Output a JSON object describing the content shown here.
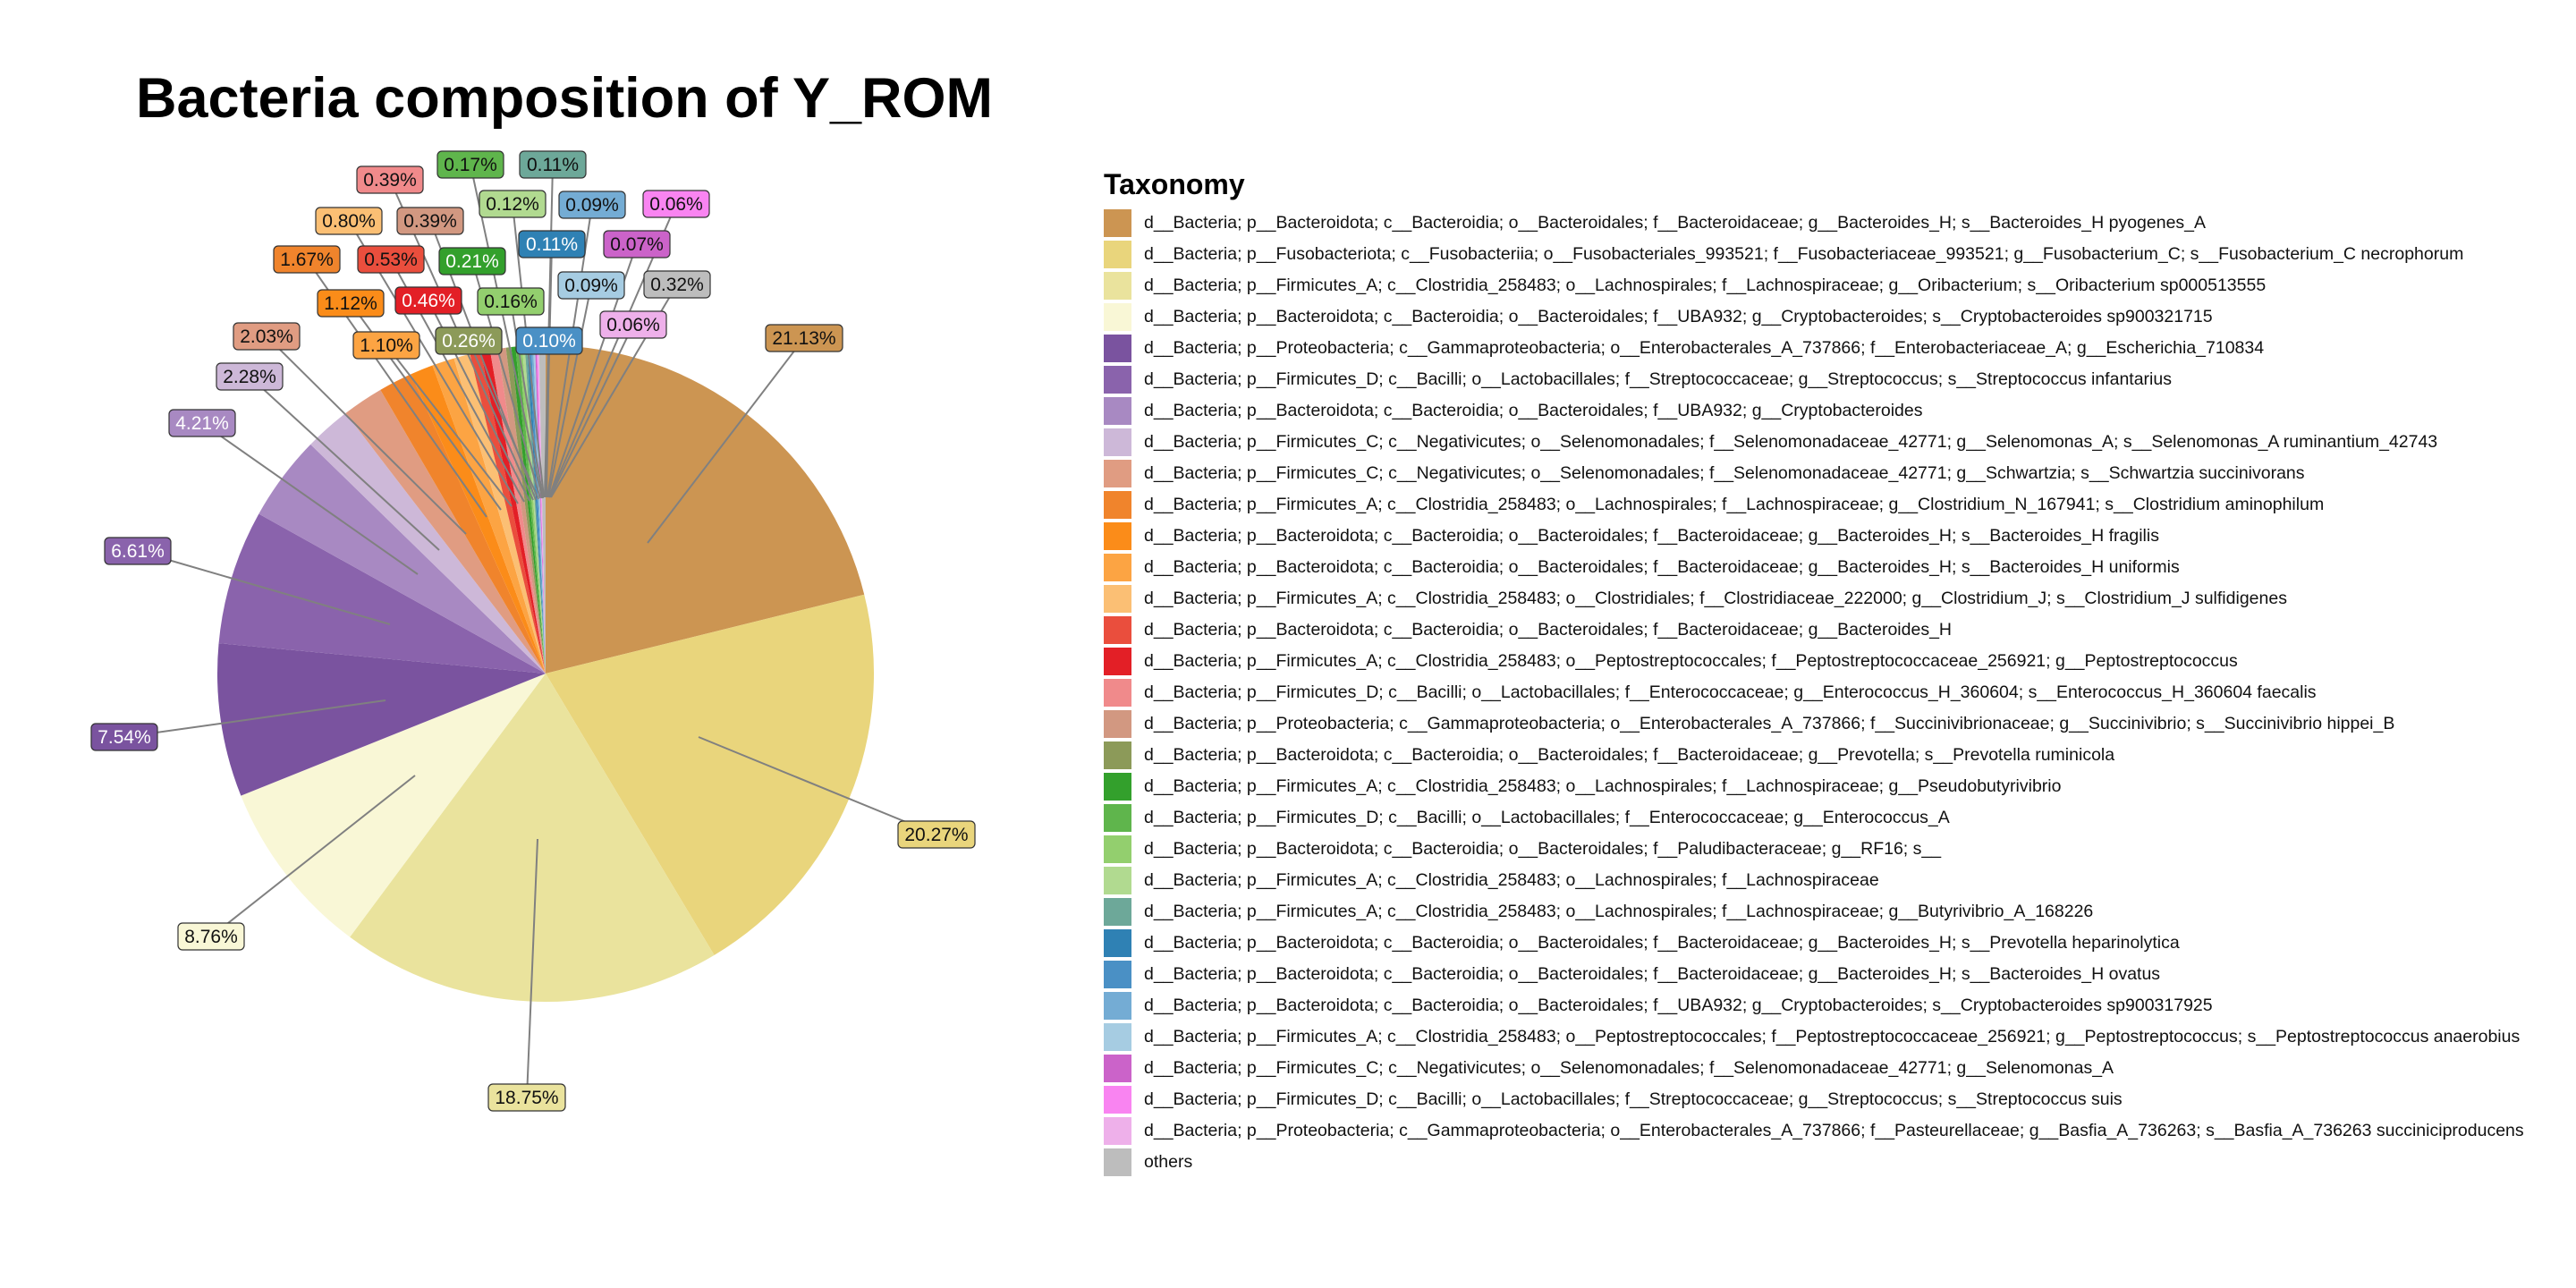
{
  "chart_data": {
    "type": "pie",
    "title": "Bacteria composition of Y_ROM",
    "legend_title": "Taxonomy",
    "legend_position": "right",
    "slices": [
      {
        "name": "d__Bacteria; p__Bacteroidota; c__Bacteroidia; o__Bacteroidales; f__Bacteroidaceae; g__Bacteroides_H; s__Bacteroides_H pyogenes_A",
        "value": 21.13,
        "label": "21.13%",
        "color": "#CC9552"
      },
      {
        "name": "d__Bacteria; p__Fusobacteriota; c__Fusobacteriia; o__Fusobacteriales_993521; f__Fusobacteriaceae_993521; g__Fusobacterium_C; s__Fusobacterium_C necrophorum",
        "value": 20.27,
        "label": "20.27%",
        "color": "#E9D57C"
      },
      {
        "name": "d__Bacteria; p__Firmicutes_A; c__Clostridia_258483; o__Lachnospirales; f__Lachnospiraceae; g__Oribacterium; s__Oribacterium sp000513555",
        "value": 18.75,
        "label": "18.75%",
        "color": "#EAE39D"
      },
      {
        "name": "d__Bacteria; p__Bacteroidota; c__Bacteroidia; o__Bacteroidales; f__UBA932; g__Cryptobacteroides; s__Cryptobacteroides sp900321715",
        "value": 8.76,
        "label": "8.76%",
        "color": "#F9F7D6"
      },
      {
        "name": "d__Bacteria; p__Proteobacteria; c__Gammaproteobacteria; o__Enterobacterales_A_737866; f__Enterobacteriaceae_A; g__Escherichia_710834",
        "value": 7.54,
        "label": "7.54%",
        "color": "#7A539F"
      },
      {
        "name": "d__Bacteria; p__Firmicutes_D; c__Bacilli; o__Lactobacillales; f__Streptococcaceae; g__Streptococcus; s__Streptococcus infantarius",
        "value": 6.61,
        "label": "6.61%",
        "color": "#8A63AC"
      },
      {
        "name": "d__Bacteria; p__Bacteroidota; c__Bacteroidia; o__Bacteroidales; f__UBA932; g__Cryptobacteroides",
        "value": 4.21,
        "label": "4.21%",
        "color": "#A889C2"
      },
      {
        "name": "d__Bacteria; p__Firmicutes_C; c__Negativicutes; o__Selenomonadales; f__Selenomonadaceae_42771; g__Selenomonas_A; s__Selenomonas_A ruminantium_42743",
        "value": 2.28,
        "label": "2.28%",
        "color": "#CDB8D8"
      },
      {
        "name": "d__Bacteria; p__Firmicutes_C; c__Negativicutes; o__Selenomonadales; f__Selenomonadaceae_42771; g__Schwartzia; s__Schwartzia succinivorans",
        "value": 2.03,
        "label": "2.03%",
        "color": "#E09C82"
      },
      {
        "name": "d__Bacteria; p__Firmicutes_A; c__Clostridia_258483; o__Lachnospirales; f__Lachnospiraceae; g__Clostridium_N_167941; s__Clostridium aminophilum",
        "value": 1.67,
        "label": "1.67%",
        "color": "#F0842C"
      },
      {
        "name": "d__Bacteria; p__Bacteroidota; c__Bacteroidia; o__Bacteroidales; f__Bacteroidaceae; g__Bacteroides_H; s__Bacteroides_H fragilis",
        "value": 1.12,
        "label": "1.12%",
        "color": "#FB8C19"
      },
      {
        "name": "d__Bacteria; p__Bacteroidota; c__Bacteroidia; o__Bacteroidales; f__Bacteroidaceae; g__Bacteroides_H; s__Bacteroides_H uniformis",
        "value": 1.1,
        "label": "1.10%",
        "color": "#FCA443"
      },
      {
        "name": "d__Bacteria; p__Firmicutes_A; c__Clostridia_258483; o__Clostridiales; f__Clostridiaceae_222000; g__Clostridium_J; s__Clostridium_J sulfidigenes",
        "value": 0.8,
        "label": "0.80%",
        "color": "#FBBF74"
      },
      {
        "name": "d__Bacteria; p__Bacteroidota; c__Bacteroidia; o__Bacteroidales; f__Bacteroidaceae; g__Bacteroides_H",
        "value": 0.53,
        "label": "0.53%",
        "color": "#EA4E3D"
      },
      {
        "name": "d__Bacteria; p__Firmicutes_A; c__Clostridia_258483; o__Peptostreptococcales; f__Peptostreptococcaceae_256921; g__Peptostreptococcus",
        "value": 0.46,
        "label": "0.46%",
        "color": "#E31F26"
      },
      {
        "name": "d__Bacteria; p__Firmicutes_D; c__Bacilli; o__Lactobacillales; f__Enterococcaceae; g__Enterococcus_H_360604; s__Enterococcus_H_360604 faecalis",
        "value": 0.39,
        "label": "0.39%",
        "color": "#F08A8B"
      },
      {
        "name": "d__Bacteria; p__Proteobacteria; c__Gammaproteobacteria; o__Enterobacterales_A_737866; f__Succinivibrionaceae; g__Succinivibrio; s__Succinivibrio hippei_B",
        "value": 0.39,
        "label": "0.39%",
        "color": "#D29881"
      },
      {
        "name": "d__Bacteria; p__Bacteroidota; c__Bacteroidia; o__Bacteroidales; f__Bacteroidaceae; g__Prevotella; s__Prevotella ruminicola",
        "value": 0.26,
        "label": "0.26%",
        "color": "#8C9A59"
      },
      {
        "name": "d__Bacteria; p__Firmicutes_A; c__Clostridia_258483; o__Lachnospirales; f__Lachnospiraceae; g__Pseudobutyrivibrio",
        "value": 0.21,
        "label": "0.21%",
        "color": "#33A02C"
      },
      {
        "name": "d__Bacteria; p__Firmicutes_D; c__Bacilli; o__Lactobacillales; f__Enterococcaceae; g__Enterococcus_A",
        "value": 0.17,
        "label": "0.17%",
        "color": "#5FB54C"
      },
      {
        "name": "d__Bacteria; p__Bacteroidota; c__Bacteroidia; o__Bacteroidales; f__Paludibacteraceae; g__RF16; s__",
        "value": 0.16,
        "label": "0.16%",
        "color": "#93CF6E"
      },
      {
        "name": "d__Bacteria; p__Firmicutes_A; c__Clostridia_258483; o__Lachnospirales; f__Lachnospiraceae",
        "value": 0.12,
        "label": "0.12%",
        "color": "#B1DA90"
      },
      {
        "name": "d__Bacteria; p__Firmicutes_A; c__Clostridia_258483; o__Lachnospirales; f__Lachnospiraceae; g__Butyrivibrio_A_168226",
        "value": 0.11,
        "label": "0.11%",
        "color": "#6DA899"
      },
      {
        "name": "d__Bacteria; p__Bacteroidota; c__Bacteroidia; o__Bacteroidales; f__Bacteroidaceae; g__Bacteroides_H; s__Prevotella heparinolytica",
        "value": 0.11,
        "label": "0.11%",
        "color": "#2F81B4"
      },
      {
        "name": "d__Bacteria; p__Bacteroidota; c__Bacteroidia; o__Bacteroidales; f__Bacteroidaceae; g__Bacteroides_H; s__Bacteroides_H ovatus",
        "value": 0.1,
        "label": "0.10%",
        "color": "#4A90C5"
      },
      {
        "name": "d__Bacteria; p__Bacteroidota; c__Bacteroidia; o__Bacteroidales; f__UBA932; g__Cryptobacteroides; s__Cryptobacteroides sp900317925",
        "value": 0.09,
        "label": "0.09%",
        "color": "#74ACD4"
      },
      {
        "name": "d__Bacteria; p__Firmicutes_A; c__Clostridia_258483; o__Peptostreptococcales; f__Peptostreptococcaceae_256921; g__Peptostreptococcus; s__Peptostreptococcus anaerobius",
        "value": 0.09,
        "label": "0.09%",
        "color": "#A6CCE2"
      },
      {
        "name": "d__Bacteria; p__Firmicutes_C; c__Negativicutes; o__Selenomonadales; f__Selenomonadaceae_42771; g__Selenomonas_A",
        "value": 0.07,
        "label": "0.07%",
        "color": "#CB63C9"
      },
      {
        "name": "d__Bacteria; p__Firmicutes_D; c__Bacilli; o__Lactobacillales; f__Streptococcaceae; g__Streptococcus; s__Streptococcus suis",
        "value": 0.06,
        "label": "0.06%",
        "color": "#F984F1"
      },
      {
        "name": "d__Bacteria; p__Proteobacteria; c__Gammaproteobacteria; o__Enterobacterales_A_737866; f__Pasteurellaceae; g__Basfia_A_736263; s__Basfia_A_736263 succiniciproducens",
        "value": 0.06,
        "label": "0.06%",
        "color": "#EEB0EA"
      },
      {
        "name": "others",
        "value": 0.32,
        "label": "0.32%",
        "color": "#BDBDBD"
      }
    ]
  }
}
